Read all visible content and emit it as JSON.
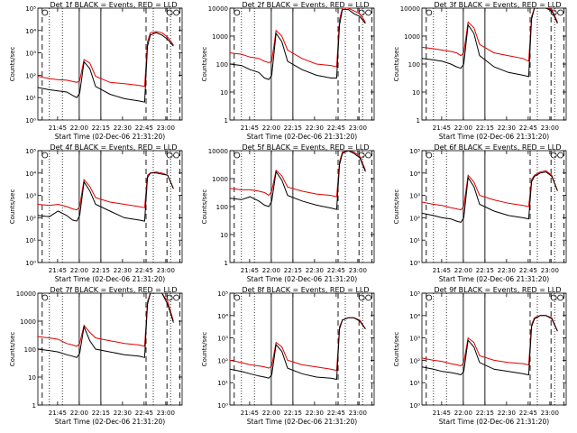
{
  "chart_data": [
    {
      "type": "line",
      "title": "Det 1f BLACK = Events, RED = LLD",
      "xlabel": "Start Time (02-Dec-06 21:31:20)",
      "ylabel": "Counts/sec",
      "y_scale": "log",
      "ylim_exp": [
        0,
        5
      ],
      "ytick_labels": [
        "10⁰",
        "10¹",
        "10²",
        "10³",
        "10⁴",
        "10⁵"
      ],
      "xtick_labels": [
        "21:45",
        "22:00",
        "22:15",
        "22:30",
        "22:45",
        "23:00"
      ],
      "x_minutes": [
        0,
        8,
        14,
        20,
        24,
        27,
        29,
        32,
        36,
        40,
        50,
        60,
        70,
        74,
        76,
        78,
        82,
        86,
        90,
        94
      ],
      "series": [
        {
          "values": [
            1.95,
            1.85,
            1.8,
            1.78,
            1.72,
            1.68,
            1.75,
            2.7,
            2.55,
            1.95,
            1.68,
            1.62,
            1.55,
            1.5,
            3.5,
            3.9,
            3.95,
            3.9,
            3.7,
            3.35
          ]
        },
        {
          "values": [
            1.45,
            1.35,
            1.3,
            1.25,
            1.1,
            1.0,
            1.2,
            2.6,
            2.3,
            1.5,
            1.15,
            0.95,
            0.85,
            0.8,
            3.3,
            3.8,
            3.9,
            3.8,
            3.6,
            3.3
          ]
        }
      ],
      "colors": {
        "events": "#000000",
        "lld": "#e00000"
      }
    },
    {
      "type": "line",
      "title": "Det 2f BLACK = Events, RED = LLD",
      "xlabel": "Start Time (02-Dec-06 21:31:20)",
      "ylabel": "Counts/sec",
      "y_scale": "log",
      "ylim_exp": [
        0,
        4
      ],
      "ytick_labels": [
        "1",
        "10",
        "100",
        "1000",
        "10000"
      ],
      "xtick_labels": [
        "21:45",
        "22:00",
        "22:15",
        "22:30",
        "22:45",
        "23:00"
      ],
      "x_minutes": [
        0,
        8,
        14,
        20,
        24,
        27,
        29,
        32,
        36,
        40,
        50,
        60,
        70,
        74,
        76,
        78,
        82,
        86,
        90,
        94
      ],
      "series": [
        {
          "values": [
            2.4,
            2.35,
            2.25,
            2.2,
            2.1,
            2.05,
            2.1,
            3.2,
            3.0,
            2.5,
            2.2,
            2.0,
            1.95,
            1.9,
            3.6,
            4.0,
            4.0,
            3.9,
            3.8,
            3.5
          ]
        },
        {
          "values": [
            2.0,
            1.95,
            1.8,
            1.7,
            1.5,
            1.45,
            1.6,
            3.1,
            2.8,
            2.1,
            1.8,
            1.6,
            1.5,
            1.5,
            3.4,
            3.95,
            3.95,
            3.8,
            3.7,
            3.45
          ]
        }
      ],
      "colors": {
        "events": "#000000",
        "lld": "#e00000"
      }
    },
    {
      "type": "line",
      "title": "Det 3f BLACK = Events, RED = LLD",
      "xlabel": "Start Time (02-Dec-06 21:31:20)",
      "ylabel": "Counts/sec",
      "y_scale": "log",
      "ylim_exp": [
        0,
        4
      ],
      "ytick_labels": [
        "1",
        "10",
        "100",
        "1000",
        "10000"
      ],
      "xtick_labels": [
        "21:45",
        "22:00",
        "22:15",
        "22:30",
        "22:45",
        "23:00"
      ],
      "x_minutes": [
        0,
        8,
        14,
        20,
        24,
        27,
        29,
        32,
        36,
        40,
        50,
        60,
        70,
        74,
        76,
        78,
        82,
        86,
        90,
        94
      ],
      "series": [
        {
          "values": [
            2.6,
            2.55,
            2.5,
            2.45,
            2.4,
            2.3,
            2.4,
            3.5,
            3.3,
            2.7,
            2.4,
            2.3,
            2.2,
            2.1,
            3.7,
            4.0,
            4.0,
            4.0,
            3.95,
            3.5
          ]
        },
        {
          "values": [
            2.2,
            2.15,
            2.1,
            2.0,
            1.9,
            1.85,
            2.0,
            3.4,
            3.1,
            2.3,
            1.9,
            1.7,
            1.6,
            1.55,
            3.6,
            4.0,
            4.0,
            4.0,
            3.9,
            3.45
          ]
        }
      ],
      "colors": {
        "events": "#000000",
        "lld": "#e00000"
      }
    },
    {
      "type": "line",
      "title": "Det 4f BLACK = Events, RED = LLD",
      "xlabel": "Start Time (02-Dec-06 21:31:20)",
      "ylabel": "Counts/sec",
      "y_scale": "log",
      "ylim_exp": [
        0,
        5
      ],
      "ytick_labels": [
        "10⁰",
        "10¹",
        "10²",
        "10³",
        "10⁴",
        "10⁵"
      ],
      "xtick_labels": [
        "21:45",
        "22:00",
        "22:15",
        "22:30",
        "22:45",
        "23:00"
      ],
      "x_minutes": [
        0,
        8,
        14,
        20,
        24,
        27,
        29,
        32,
        36,
        40,
        50,
        60,
        70,
        74,
        76,
        78,
        82,
        86,
        90,
        94
      ],
      "series": [
        {
          "values": [
            2.6,
            2.55,
            2.6,
            2.5,
            2.4,
            2.35,
            2.5,
            3.7,
            3.4,
            2.9,
            2.7,
            2.6,
            2.5,
            2.45,
            3.9,
            4.0,
            4.05,
            4.0,
            3.9,
            3.3
          ]
        },
        {
          "values": [
            2.1,
            2.05,
            2.3,
            2.1,
            1.9,
            1.85,
            2.1,
            3.6,
            3.2,
            2.6,
            2.3,
            2.0,
            1.9,
            1.85,
            3.8,
            4.0,
            4.0,
            3.95,
            3.9,
            3.3
          ]
        }
      ],
      "colors": {
        "events": "#000000",
        "lld": "#e00000"
      }
    },
    {
      "type": "line",
      "title": "Det 5f BLACK = Events, RED = LLD",
      "xlabel": "Start Time (02-Dec-06 21:31:20)",
      "ylabel": "Counts/sec",
      "y_scale": "log",
      "ylim_exp": [
        0,
        4
      ],
      "ytick_labels": [
        "1",
        "10",
        "100",
        "1000",
        "10000"
      ],
      "xtick_labels": [
        "21:45",
        "22:00",
        "22:15",
        "22:30",
        "22:45",
        "23:00"
      ],
      "x_minutes": [
        0,
        8,
        14,
        20,
        24,
        27,
        29,
        32,
        36,
        40,
        50,
        60,
        70,
        74,
        76,
        78,
        82,
        86,
        90,
        94
      ],
      "series": [
        {
          "values": [
            2.65,
            2.6,
            2.6,
            2.55,
            2.5,
            2.4,
            2.55,
            3.3,
            3.1,
            2.7,
            2.55,
            2.45,
            2.4,
            2.35,
            3.6,
            3.95,
            4.0,
            3.95,
            3.8,
            3.3
          ]
        },
        {
          "values": [
            2.3,
            2.25,
            2.35,
            2.2,
            2.05,
            2.0,
            2.2,
            3.25,
            2.95,
            2.4,
            2.2,
            2.05,
            1.95,
            1.9,
            3.5,
            3.9,
            4.0,
            3.9,
            3.75,
            3.25
          ]
        }
      ],
      "colors": {
        "events": "#000000",
        "lld": "#e00000"
      }
    },
    {
      "type": "line",
      "title": "Det 6f BLACK = Events, RED = LLD",
      "xlabel": "Start Time (02-Dec-06 21:31:20)",
      "ylabel": "Counts/sec",
      "y_scale": "log",
      "ylim_exp": [
        0,
        5
      ],
      "ytick_labels": [
        "10⁰",
        "10¹",
        "10²",
        "10³",
        "10⁴",
        "10⁵"
      ],
      "xtick_labels": [
        "21:45",
        "22:00",
        "22:15",
        "22:30",
        "22:45",
        "23:00"
      ],
      "x_minutes": [
        0,
        8,
        14,
        20,
        24,
        27,
        29,
        32,
        36,
        40,
        50,
        60,
        70,
        74,
        76,
        78,
        82,
        86,
        90,
        94
      ],
      "series": [
        {
          "values": [
            2.7,
            2.6,
            2.55,
            2.45,
            2.4,
            2.35,
            2.5,
            3.9,
            3.6,
            3.0,
            2.8,
            2.65,
            2.55,
            2.5,
            3.7,
            3.9,
            4.05,
            4.1,
            3.9,
            3.2
          ]
        },
        {
          "values": [
            2.2,
            2.1,
            2.0,
            1.95,
            1.85,
            1.8,
            2.0,
            3.8,
            3.4,
            2.6,
            2.3,
            2.1,
            2.0,
            1.95,
            3.6,
            3.85,
            4.0,
            4.05,
            3.85,
            3.2
          ]
        }
      ],
      "colors": {
        "events": "#000000",
        "lld": "#e00000"
      }
    },
    {
      "type": "line",
      "title": "Det 7f BLACK = Events, RED = LLD",
      "xlabel": "Start Time (02-Dec-06 21:31:20)",
      "ylabel": "Counts/sec",
      "y_scale": "log",
      "ylim_exp": [
        0,
        4
      ],
      "ytick_labels": [
        "1",
        "10",
        "100",
        "1000",
        "10000"
      ],
      "xtick_labels": [
        "21:45",
        "22:00",
        "22:15",
        "22:30",
        "22:45",
        "23:00"
      ],
      "x_minutes": [
        0,
        8,
        14,
        20,
        24,
        27,
        29,
        32,
        36,
        40,
        50,
        60,
        70,
        74,
        76,
        78,
        82,
        86,
        90,
        94
      ],
      "series": [
        {
          "values": [
            2.45,
            2.4,
            2.35,
            2.2,
            2.15,
            2.1,
            2.2,
            2.85,
            2.6,
            2.4,
            2.3,
            2.2,
            2.15,
            2.1,
            3.7,
            4.0,
            4.0,
            4.0,
            3.7,
            3.0
          ]
        },
        {
          "values": [
            2.0,
            1.95,
            1.9,
            1.8,
            1.75,
            1.7,
            1.85,
            2.8,
            2.3,
            2.0,
            1.9,
            1.8,
            1.75,
            1.7,
            3.6,
            4.0,
            4.0,
            4.0,
            3.6,
            2.95
          ]
        }
      ],
      "colors": {
        "events": "#000000",
        "lld": "#e00000"
      }
    },
    {
      "type": "line",
      "title": "Det 8f BLACK = Events, RED = LLD",
      "xlabel": "Start Time (02-Dec-06 21:31:20)",
      "ylabel": "Counts/sec",
      "y_scale": "log",
      "ylim_exp": [
        0,
        5
      ],
      "ytick_labels": [
        "10⁰",
        "10¹",
        "10²",
        "10³",
        "10⁴",
        "10⁵"
      ],
      "xtick_labels": [
        "21:45",
        "22:00",
        "22:15",
        "22:30",
        "22:45",
        "23:00"
      ],
      "x_minutes": [
        0,
        8,
        14,
        20,
        24,
        27,
        29,
        32,
        36,
        40,
        50,
        60,
        70,
        74,
        76,
        78,
        82,
        86,
        90,
        94
      ],
      "series": [
        {
          "values": [
            2.0,
            1.9,
            1.8,
            1.75,
            1.7,
            1.65,
            1.75,
            2.8,
            2.6,
            2.0,
            1.8,
            1.7,
            1.6,
            1.55,
            3.5,
            3.8,
            3.9,
            3.9,
            3.8,
            3.4
          ]
        },
        {
          "values": [
            1.6,
            1.5,
            1.4,
            1.3,
            1.25,
            1.2,
            1.35,
            2.7,
            2.4,
            1.65,
            1.4,
            1.25,
            1.2,
            1.15,
            3.4,
            3.8,
            3.9,
            3.9,
            3.75,
            3.4
          ]
        }
      ],
      "colors": {
        "events": "#000000",
        "lld": "#e00000"
      }
    },
    {
      "type": "line",
      "title": "Det 9f BLACK = Events, RED = LLD",
      "xlabel": "Start Time (02-Dec-06 21:31:20)",
      "ylabel": "Counts/sec",
      "y_scale": "log",
      "ylim_exp": [
        0,
        5
      ],
      "ytick_labels": [
        "10⁰",
        "10¹",
        "10²",
        "10³",
        "10⁴",
        "10⁵"
      ],
      "xtick_labels": [
        "21:45",
        "22:00",
        "22:15",
        "22:30",
        "22:45",
        "23:00"
      ],
      "x_minutes": [
        0,
        8,
        14,
        20,
        24,
        27,
        29,
        32,
        36,
        40,
        50,
        60,
        70,
        74,
        76,
        78,
        82,
        86,
        90,
        94
      ],
      "series": [
        {
          "values": [
            2.1,
            2.0,
            1.95,
            1.85,
            1.8,
            1.75,
            1.9,
            3.0,
            2.8,
            2.2,
            2.0,
            1.9,
            1.85,
            1.8,
            3.6,
            3.9,
            4.0,
            4.0,
            3.9,
            3.3
          ]
        },
        {
          "values": [
            1.7,
            1.6,
            1.5,
            1.45,
            1.4,
            1.35,
            1.5,
            2.9,
            2.6,
            1.9,
            1.6,
            1.5,
            1.4,
            1.35,
            3.5,
            3.85,
            4.0,
            4.0,
            3.85,
            3.3
          ]
        }
      ],
      "colors": {
        "events": "#000000",
        "lld": "#e00000"
      }
    }
  ]
}
